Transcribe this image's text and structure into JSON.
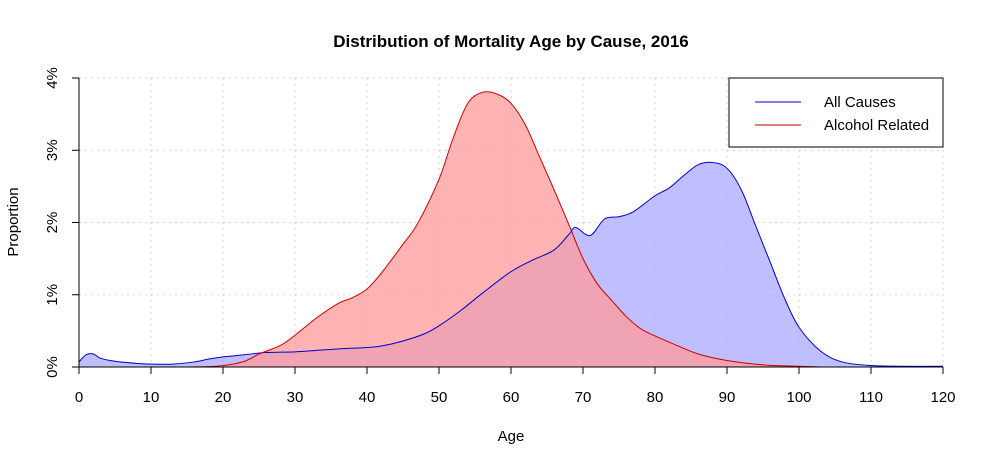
{
  "chart_data": {
    "type": "area",
    "title": "Distribution of Mortality Age by Cause, 2016",
    "xlabel": "Age",
    "ylabel": "Proportion",
    "xlim": [
      0,
      120
    ],
    "ylim": [
      0,
      0.04
    ],
    "xticks": [
      0,
      10,
      20,
      30,
      40,
      50,
      60,
      70,
      80,
      90,
      100,
      110,
      120
    ],
    "xtick_labels": [
      "0",
      "10",
      "20",
      "30",
      "40",
      "50",
      "60",
      "70",
      "80",
      "90",
      "100",
      "110",
      "120"
    ],
    "yticks": [
      0,
      0.01,
      0.02,
      0.03,
      0.04
    ],
    "ytick_labels": [
      "0%",
      "1%",
      "2%",
      "3%",
      "4%"
    ],
    "grid": true,
    "legend_position": "top-right",
    "series": [
      {
        "name": "All Causes",
        "line_color": "#0000cc",
        "fill_color": "#aaaaff",
        "x": [
          0,
          1,
          2,
          3,
          5,
          8,
          10,
          13,
          16,
          18,
          20,
          23,
          26,
          30,
          33,
          36,
          40,
          42,
          45,
          48,
          50,
          53,
          56,
          60,
          63,
          66,
          68,
          69,
          71,
          73,
          75,
          77,
          80,
          82,
          84,
          86,
          88,
          90,
          92,
          94,
          96,
          98,
          100,
          103,
          106,
          110,
          115,
          120
        ],
        "y": [
          0.0007,
          0.0017,
          0.0018,
          0.0012,
          0.0008,
          0.0005,
          0.0004,
          0.0004,
          0.0007,
          0.0011,
          0.0014,
          0.0017,
          0.002,
          0.0021,
          0.0023,
          0.0025,
          0.0027,
          0.0029,
          0.0036,
          0.0046,
          0.0057,
          0.0078,
          0.0102,
          0.0132,
          0.0148,
          0.0162,
          0.0183,
          0.0193,
          0.0182,
          0.0205,
          0.0208,
          0.0215,
          0.0237,
          0.0248,
          0.0265,
          0.028,
          0.0283,
          0.0275,
          0.0245,
          0.0195,
          0.0145,
          0.0095,
          0.0055,
          0.0022,
          0.0007,
          0.0002,
          0.0001,
          0.0001
        ]
      },
      {
        "name": "Alcohol Related",
        "line_color": "#cc0000",
        "fill_color": "#ff9999",
        "x": [
          0,
          15,
          20,
          23,
          25,
          28,
          30,
          33,
          36,
          38,
          40,
          42,
          45,
          47,
          50,
          52,
          54,
          56,
          58,
          60,
          62,
          64,
          66,
          68,
          70,
          72,
          74,
          76,
          78,
          80,
          83,
          86,
          90,
          95,
          100,
          103
        ],
        "y": [
          0,
          0,
          0.0002,
          0.0008,
          0.0018,
          0.003,
          0.0044,
          0.0068,
          0.0088,
          0.0096,
          0.0108,
          0.013,
          0.017,
          0.0198,
          0.026,
          0.0318,
          0.0365,
          0.038,
          0.0378,
          0.0365,
          0.0335,
          0.029,
          0.0245,
          0.0198,
          0.015,
          0.0115,
          0.0092,
          0.007,
          0.0053,
          0.0043,
          0.003,
          0.0018,
          0.0009,
          0.0003,
          0.0001,
          0
        ]
      }
    ]
  }
}
